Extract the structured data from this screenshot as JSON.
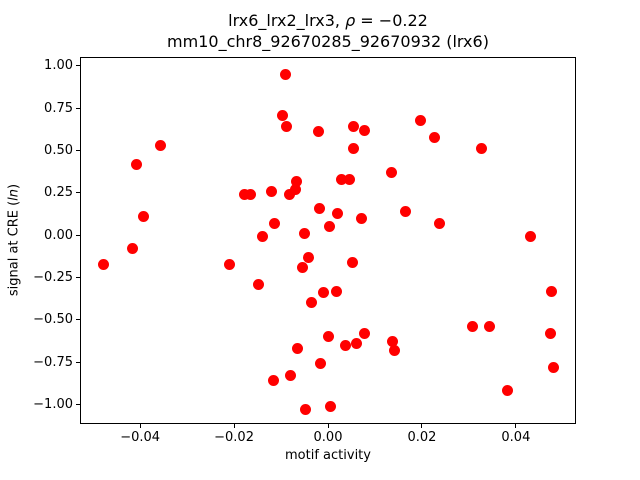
{
  "figure": {
    "title_prefix": "lrx6_lrx2_lrx3, ",
    "title_rho": "ρ",
    "title_suffix": " = −0.22",
    "subtitle": "mm10_chr8_92670285_92670932 (lrx6)",
    "xlabel": "motif activity",
    "ylabel_prefix": "signal at CRE (",
    "ylabel_italic": "ln",
    "ylabel_suffix": ")"
  },
  "chart_data": {
    "type": "scatter",
    "title": "lrx6_lrx2_lrx3, ρ = −0.22",
    "subtitle": "mm10_chr8_92670285_92670932 (lrx6)",
    "correlation_rho": -0.22,
    "xlabel": "motif activity",
    "ylabel": "signal at CRE (ln)",
    "xlim": [
      -0.0528,
      0.0528
    ],
    "ylim": [
      -1.112,
      1.05
    ],
    "xticks": [
      -0.04,
      -0.02,
      0,
      0.02,
      0.04
    ],
    "xtick_labels": [
      "−0.04",
      "−0.02",
      "0.00",
      "0.02",
      "0.04"
    ],
    "yticks": [
      1.0,
      0.75,
      0.5,
      0.25,
      0,
      -0.25,
      -0.5,
      -0.75,
      -1.0
    ],
    "ytick_labels": [
      "1.00",
      "0.75",
      "0.50",
      "0.25",
      "0.00",
      "−0.25",
      "−0.50",
      "−0.75",
      "−1.00"
    ],
    "grid": false,
    "legend": null,
    "marker": {
      "shape": "circle",
      "color": "#ff0000",
      "radius_px": 5.5
    },
    "points": [
      [
        -0.009,
        0.95
      ],
      [
        -0.0096,
        0.71
      ],
      [
        -0.0089,
        0.64
      ],
      [
        -0.0021,
        0.61
      ],
      [
        -0.0356,
        0.53
      ],
      [
        -0.0407,
        0.42
      ],
      [
        -0.0067,
        0.32
      ],
      [
        -0.0177,
        0.24
      ],
      [
        -0.0164,
        0.24
      ],
      [
        -0.0121,
        0.26
      ],
      [
        -0.0083,
        0.24
      ],
      [
        -0.007,
        0.27
      ],
      [
        -0.0393,
        0.11
      ],
      [
        -0.0114,
        0.07
      ],
      [
        -0.0019,
        0.16
      ],
      [
        0.0003,
        0.05
      ],
      [
        -0.0051,
        0.01
      ],
      [
        -0.014,
        -0.01
      ],
      [
        0.0054,
        0.64
      ],
      [
        0.0077,
        0.62
      ],
      [
        0.0196,
        0.68
      ],
      [
        0.0227,
        0.58
      ],
      [
        0.0055,
        0.51
      ],
      [
        0.0326,
        0.51
      ],
      [
        0.0136,
        0.37
      ],
      [
        0.0029,
        0.33
      ],
      [
        0.0045,
        0.33
      ],
      [
        0.002,
        0.13
      ],
      [
        0.0071,
        0.1
      ],
      [
        0.0165,
        0.14
      ],
      [
        0.0237,
        0.07
      ],
      [
        0.0431,
        -0.01
      ],
      [
        -0.0416,
        -0.08
      ],
      [
        -0.0478,
        -0.17
      ],
      [
        -0.0209,
        -0.17
      ],
      [
        -0.0041,
        -0.13
      ],
      [
        -0.0055,
        -0.19
      ],
      [
        -0.0148,
        -0.29
      ],
      [
        -0.0009,
        -0.34
      ],
      [
        0.0018,
        -0.33
      ],
      [
        -0.0036,
        -0.4
      ],
      [
        0.0,
        -0.6
      ],
      [
        -0.0065,
        -0.67
      ],
      [
        -0.0017,
        -0.76
      ],
      [
        -0.008,
        -0.83
      ],
      [
        -0.0116,
        -0.86
      ],
      [
        -0.0047,
        -1.03
      ],
      [
        0.0006,
        -1.01
      ],
      [
        0.0053,
        -0.16
      ],
      [
        0.0077,
        -0.58
      ],
      [
        0.0038,
        -0.65
      ],
      [
        0.006,
        -0.64
      ],
      [
        0.0137,
        -0.63
      ],
      [
        0.0141,
        -0.68
      ],
      [
        0.0307,
        -0.54
      ],
      [
        0.0343,
        -0.54
      ],
      [
        0.0476,
        -0.33
      ],
      [
        0.0474,
        -0.58
      ],
      [
        0.0481,
        -0.78
      ],
      [
        0.0383,
        -0.92
      ]
    ]
  }
}
